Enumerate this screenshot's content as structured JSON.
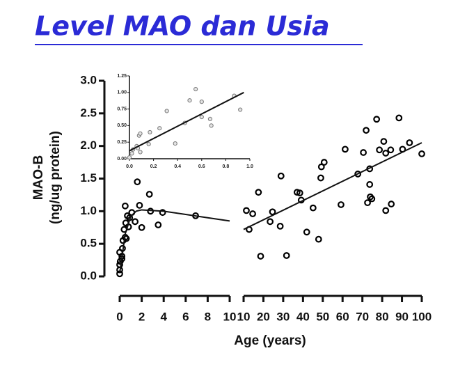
{
  "chart_data": [
    {
      "type": "scatter",
      "title": "Level MAO dan Usia",
      "ylabel": [
        "MAO-B",
        "(ng/ug protein)"
      ],
      "xlabel": "Age (years)",
      "ylim": [
        0,
        3
      ],
      "yticks": [
        {
          "value": 0,
          "label": "0.0"
        },
        {
          "value": 0.5,
          "label": "0.5"
        },
        {
          "value": 1,
          "label": "1.0"
        },
        {
          "value": 1.5,
          "label": "1.5"
        },
        {
          "value": 2,
          "label": "2.0"
        },
        {
          "value": 2.5,
          "label": "2.5"
        },
        {
          "value": 3,
          "label": "3.0"
        }
      ],
      "panels": [
        {
          "xlim": [
            0,
            10
          ],
          "xticks": [
            0,
            2,
            4,
            6,
            8,
            10
          ],
          "series": [
            {
              "color": "#000000",
              "x": [
                0,
                0,
                0,
                0.05,
                0.2,
                0,
                0.25,
                0.3,
                0.4,
                0.5,
                0.6,
                0.55,
                0.7,
                0.5,
                0.8,
                0.9,
                1.1,
                1.4,
                1.6,
                1.8,
                2.0,
                2.7,
                2.8,
                3.5,
                3.9,
                6.9,
                0.2
              ],
              "values": [
                0.04,
                0.1,
                0.18,
                0.23,
                0.31,
                0.37,
                0.43,
                0.55,
                0.72,
                0.6,
                0.58,
                0.82,
                0.93,
                1.08,
                0.76,
                0.9,
                0.98,
                0.84,
                1.45,
                1.09,
                0.75,
                1.26,
                1.0,
                0.79,
                0.98,
                0.93,
                0.27
              ]
            }
          ],
          "fit": {
            "x": [
              0,
              0.5,
              1,
              1.5,
              2,
              4,
              6,
              8,
              10
            ],
            "values": [
              0.05,
              0.65,
              0.92,
              1.0,
              1.02,
              1.0,
              0.95,
              0.9,
              0.85
            ]
          }
        },
        {
          "xlim": [
            10,
            100
          ],
          "xticks": [
            10,
            20,
            30,
            40,
            50,
            60,
            70,
            80,
            90,
            100
          ],
          "series": [
            {
              "color": "#000000",
              "x": [
                11.4,
                12.8,
                14.6,
                17.5,
                18.6,
                23.4,
                24.6,
                28.5,
                28.9,
                31.7,
                37,
                38.4,
                39.1,
                41.9,
                45.1,
                47.9,
                49,
                49.3,
                50.7,
                59.2,
                61.3,
                67.7,
                70.5,
                71.9,
                72.6,
                73.7,
                73.7,
                74,
                74.8,
                77.2,
                78.6,
                80.8,
                81.8,
                81.8,
                84.3,
                84.6,
                88.5,
                90.3,
                93.8,
                100
              ],
              "values": [
                1.01,
                0.72,
                0.96,
                1.29,
                0.31,
                0.84,
                0.99,
                0.77,
                1.54,
                0.32,
                1.29,
                1.28,
                1.17,
                0.68,
                1.05,
                0.57,
                1.51,
                1.68,
                1.75,
                1.1,
                1.95,
                1.57,
                1.9,
                2.24,
                1.13,
                1.65,
                1.41,
                1.22,
                1.19,
                2.41,
                1.94,
                2.07,
                1.89,
                1.01,
                1.94,
                1.11,
                2.43,
                1.95,
                2.05,
                1.88
              ]
            }
          ],
          "fit": {
            "x": [
              10,
              100
            ],
            "values": [
              0.72,
              2.05
            ]
          }
        }
      ]
    },
    {
      "type": "scatter",
      "xlim": [
        0,
        1
      ],
      "xticks": [
        {
          "value": 0,
          "label": "0.0"
        },
        {
          "value": 0.2,
          "label": "0.2"
        },
        {
          "value": 0.4,
          "label": "0.4"
        },
        {
          "value": 0.6,
          "label": "0.6"
        },
        {
          "value": 0.8,
          "label": "0.8"
        },
        {
          "value": 1,
          "label": "1.0"
        }
      ],
      "ylim": [
        0,
        1.25
      ],
      "yticks": [
        {
          "value": 0,
          "label": "0.00"
        },
        {
          "value": 0.25,
          "label": "0.25"
        },
        {
          "value": 0.5,
          "label": "0.50"
        },
        {
          "value": 0.75,
          "label": "0.75"
        },
        {
          "value": 1,
          "label": "1.00"
        },
        {
          "value": 1.25,
          "label": "1.25"
        }
      ],
      "series": [
        {
          "color": "#777777",
          "x": [
            0.0,
            0.02,
            0.03,
            0.06,
            0.07,
            0.09,
            0.08,
            0.09,
            0.17,
            0.16,
            0.25,
            0.31,
            0.38,
            0.46,
            0.5,
            0.55,
            0.6,
            0.6,
            0.67,
            0.68,
            0.87,
            0.92
          ],
          "values": [
            0.02,
            0.08,
            0.14,
            0.19,
            0.16,
            0.1,
            0.35,
            0.38,
            0.4,
            0.22,
            0.46,
            0.72,
            0.23,
            0.54,
            0.88,
            1.05,
            0.86,
            0.63,
            0.6,
            0.5,
            0.95,
            0.74
          ]
        }
      ],
      "fit": {
        "x": [
          0,
          0.95
        ],
        "values": [
          0.12,
          1.0
        ]
      }
    }
  ]
}
